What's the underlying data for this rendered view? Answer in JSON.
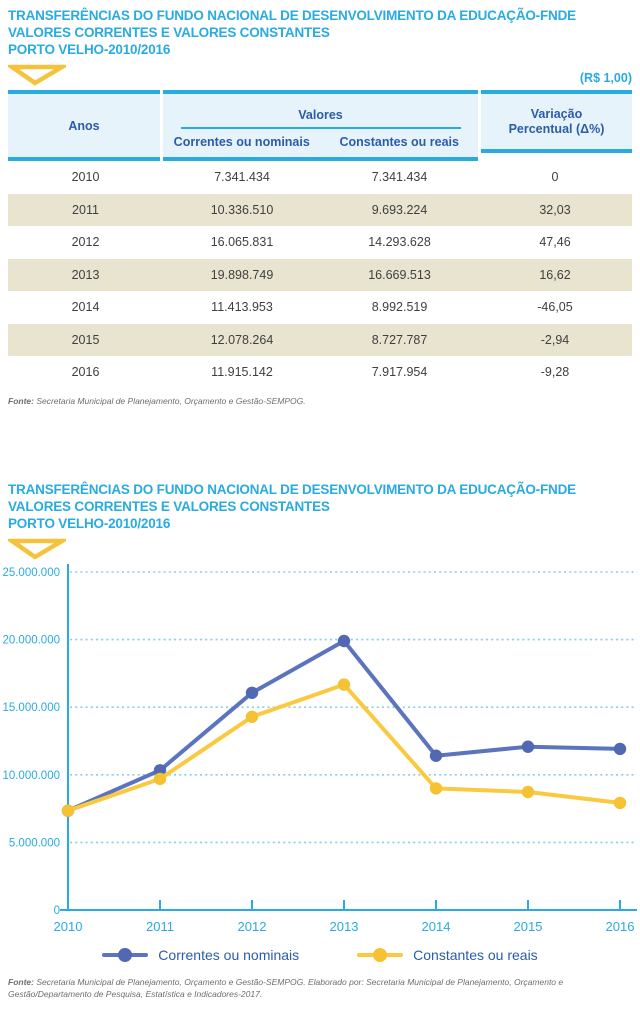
{
  "section1": {
    "title_lines": [
      "TRANSFERÊNCIAS DO FUNDO NACIONAL DE DESENVOLVIMENTO DA EDUCAÇÃO-FNDE",
      "VALORES CORRENTES E VALORES CONSTANTES",
      "PORTO VELHO-2010/2016"
    ],
    "currency_note": "(R$ 1,00)",
    "table": {
      "col_anos": "Anos",
      "col_valores": "Valores",
      "col_correntes": "Correntes ou nominais",
      "col_constantes": "Constantes ou reais",
      "col_variacao": "Variação Percentual (Δ%)",
      "rows": [
        {
          "ano": "2010",
          "correntes": "7.341.434",
          "constantes": "7.341.434",
          "variacao": "0"
        },
        {
          "ano": "2011",
          "correntes": "10.336.510",
          "constantes": "9.693.224",
          "variacao": "32,03"
        },
        {
          "ano": "2012",
          "correntes": "16.065.831",
          "constantes": "14.293.628",
          "variacao": "47,46"
        },
        {
          "ano": "2013",
          "correntes": "19.898.749",
          "constantes": "16.669.513",
          "variacao": "16,62"
        },
        {
          "ano": "2014",
          "correntes": "11.413.953",
          "constantes": "8.992.519",
          "variacao": "-46,05"
        },
        {
          "ano": "2015",
          "correntes": "12.078.264",
          "constantes": "8.727.787",
          "variacao": "-2,94"
        },
        {
          "ano": "2016",
          "correntes": "11.915.142",
          "constantes": "7.917.954",
          "variacao": "-9,28"
        }
      ]
    },
    "fonte": {
      "label": "Fonte:",
      "text": " Secretaria Municipal de Planejamento, Orçamento e Gestão-SEMPOG."
    }
  },
  "section2": {
    "title_lines": [
      "TRANSFERÊNCIAS DO FUNDO NACIONAL DE DESENVOLVIMENTO DA EDUCAÇÃO-FNDE",
      "VALORES CORRENTES E VALORES CONSTANTES",
      "PORTO VELHO-2010/2016"
    ],
    "fonte": {
      "label": "Fonte:",
      "text": " Secretaria Municipal de Planejamento, Orçamento e Gestão-SEMPOG. Elaborado por: Secretaria Municipal de Planejamento, Orçamento e Gestão/Departamento de Pesquisa, Estatística e Indicadores-2017."
    }
  },
  "chart_data": {
    "type": "line",
    "x": [
      "2010",
      "2011",
      "2012",
      "2013",
      "2014",
      "2015",
      "2016"
    ],
    "series": [
      {
        "name": "Correntes ou nominais",
        "color": "#5B74BD",
        "dot_color": "#5069B2",
        "values": [
          7341434,
          10336510,
          16065831,
          19898749,
          11413953,
          12078264,
          11915142
        ]
      },
      {
        "name": "Constantes ou reais",
        "color": "#FBC93F",
        "dot_color": "#F5C234",
        "values": [
          7341434,
          9693224,
          14293628,
          16669513,
          8992519,
          8727787,
          7917954
        ]
      }
    ],
    "ylim": [
      0,
      25000000
    ],
    "ytick_step": 5000000,
    "ytick_labels": [
      "0",
      "5.000.000",
      "10.000.000",
      "15.000.000",
      "20.000.000",
      "25.000.000"
    ],
    "grid": "dotted-horizontal",
    "legend_position": "bottom",
    "axis_color": "#29ABE2",
    "grid_color": "#85CDEE",
    "tick_label_color": "#29ABE2"
  },
  "colors": {
    "title_blue": "#29ABE2",
    "header_text_blue": "#2B5CA9",
    "header_bg": "#E7F3FA",
    "row_alt_bg": "#E8E4D0",
    "triangle_yellow": "#F5C33B"
  }
}
